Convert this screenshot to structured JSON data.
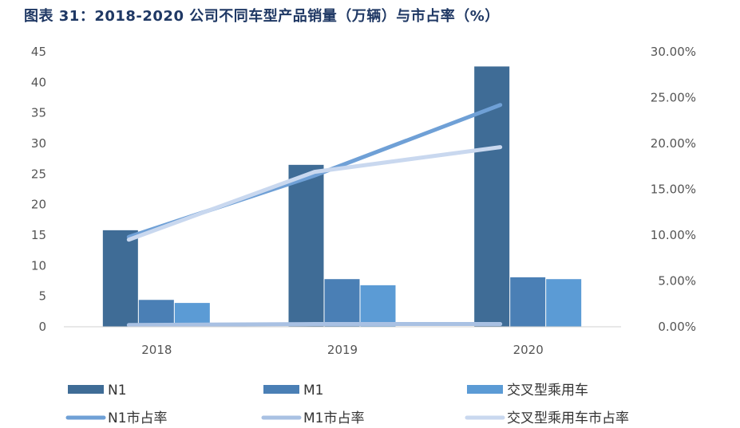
{
  "title": "图表 31：2018-2020 公司不同车型产品销量（万辆）与市占率（%）",
  "chart_data": {
    "type": "bar",
    "categories": [
      "2018",
      "2019",
      "2020"
    ],
    "bar_series": [
      {
        "name": "N1",
        "values": [
          15.8,
          26.5,
          42.6
        ],
        "color": "#3f6c96"
      },
      {
        "name": "M1",
        "values": [
          4.4,
          7.8,
          8.1
        ],
        "color": "#4a7fb5"
      },
      {
        "name": "交叉型乘用车",
        "values": [
          3.9,
          6.8,
          7.8
        ],
        "color": "#5b9bd5"
      }
    ],
    "line_series": [
      {
        "name": "N1市占率",
        "values": [
          9.8,
          16.5,
          24.2
        ],
        "color": "#6fa0d6"
      },
      {
        "name": "M1市占率",
        "values": [
          0.2,
          0.3,
          0.3
        ],
        "color": "#a9c1e3"
      },
      {
        "name": "交叉型乘用车市占率",
        "values": [
          9.5,
          16.9,
          19.6
        ],
        "color": "#c9d8ef"
      }
    ],
    "y_left": {
      "min": 0,
      "max": 45,
      "step": 5,
      "tick_labels": [
        "0",
        "5",
        "10",
        "15",
        "20",
        "25",
        "30",
        "35",
        "40",
        "45"
      ]
    },
    "y_right": {
      "min": 0,
      "max": 30,
      "step": 5,
      "tick_labels": [
        "0.00%",
        "5.00%",
        "10.00%",
        "15.00%",
        "20.00%",
        "25.00%",
        "30.00%"
      ]
    },
    "grid": false,
    "legend_position": "bottom"
  }
}
